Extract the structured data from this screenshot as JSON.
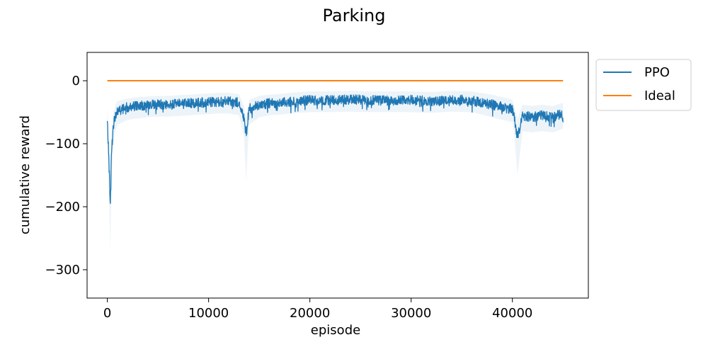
{
  "chart_data": {
    "type": "line",
    "title": "Parking",
    "xlabel": "episode",
    "ylabel": "cumulative reward",
    "xlim": [
      -2000,
      47500
    ],
    "ylim": [
      -345,
      45
    ],
    "xticks": [
      0,
      10000,
      20000,
      30000,
      40000
    ],
    "yticks": [
      0,
      -100,
      -200,
      -300
    ],
    "legend_position": "outside-upper-right",
    "grid": false,
    "series": [
      {
        "name": "PPO",
        "color": "#1f77b4",
        "style": "noisy line with faint shaded variance band",
        "x": [
          0,
          100,
          200,
          300,
          400,
          600,
          800,
          1000,
          1500,
          2000,
          3000,
          4000,
          5000,
          6000,
          7000,
          8000,
          9000,
          10000,
          11000,
          12000,
          13000,
          13500,
          13700,
          14000,
          15000,
          16000,
          17000,
          18000,
          19000,
          20000,
          22000,
          24000,
          26000,
          28000,
          30000,
          32000,
          34000,
          36000,
          38000,
          39000,
          40000,
          40200,
          40500,
          41000,
          42000,
          43000,
          44000,
          45000
        ],
        "values": [
          -60,
          -105,
          -150,
          -200,
          -120,
          -70,
          -55,
          -48,
          -45,
          -42,
          -40,
          -39,
          -38,
          -38,
          -37,
          -36,
          -35,
          -34,
          -33,
          -33,
          -35,
          -60,
          -85,
          -45,
          -38,
          -36,
          -35,
          -33,
          -32,
          -31,
          -31,
          -30,
          -31,
          -31,
          -31,
          -32,
          -30,
          -31,
          -38,
          -42,
          -45,
          -60,
          -90,
          -55,
          -58,
          -55,
          -58,
          -52
        ],
        "band_upper": [
          -40,
          -70,
          -100,
          -140,
          -80,
          -50,
          -38,
          -32,
          -30,
          -28,
          -26,
          -25,
          -24,
          -24,
          -23,
          -22,
          -21,
          -20,
          -19,
          -19,
          -21,
          -40,
          -60,
          -30,
          -24,
          -22,
          -21,
          -19,
          -18,
          -17,
          -17,
          -16,
          -17,
          -17,
          -17,
          -18,
          -16,
          -17,
          -22,
          -26,
          -30,
          -40,
          -60,
          -38,
          -40,
          -38,
          -40,
          -35
        ],
        "band_lower": [
          -90,
          -150,
          -210,
          -270,
          -170,
          -100,
          -80,
          -70,
          -66,
          -62,
          -60,
          -58,
          -57,
          -57,
          -56,
          -55,
          -54,
          -53,
          -52,
          -52,
          -55,
          -90,
          -160,
          -70,
          -58,
          -55,
          -54,
          -52,
          -51,
          -50,
          -50,
          -49,
          -50,
          -50,
          -50,
          -51,
          -49,
          -50,
          -58,
          -62,
          -66,
          -90,
          -150,
          -80,
          -82,
          -80,
          -82,
          -76
        ],
        "noise_amplitude": 8,
        "samples": 1800
      },
      {
        "name": "Ideal",
        "color": "#ff7f0e",
        "style": "line",
        "x": [
          0,
          45000
        ],
        "values": [
          0,
          0
        ]
      }
    ]
  }
}
